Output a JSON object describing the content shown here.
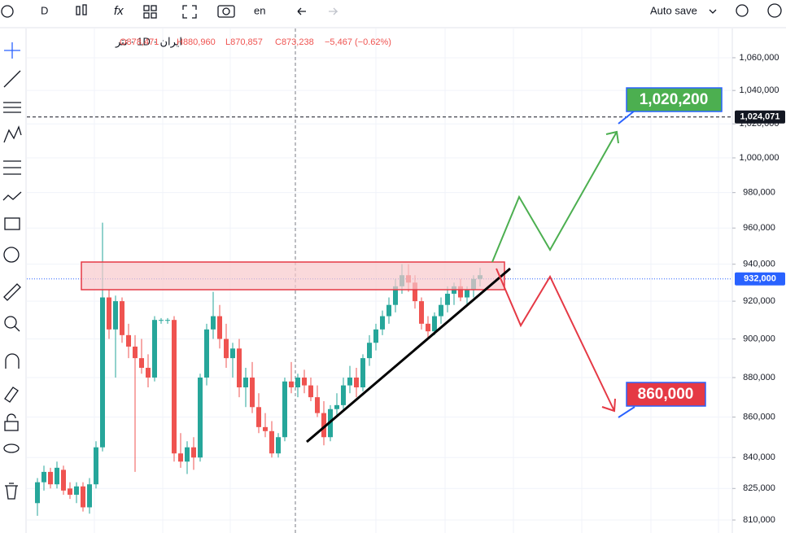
{
  "toolbar": {
    "interval": "D",
    "language": "en",
    "autosave": "Auto save"
  },
  "legend": {
    "symbol": "ایران · 1D · تتر",
    "open": "O878,471",
    "high": "H880,960",
    "low": "L870,857",
    "close": "C873,238",
    "change": "−5,467 (−0.62%)"
  },
  "chart_data": {
    "type": "candlestick",
    "log_scale": true,
    "grid": true,
    "up_color": "#26a69a",
    "down_color": "#ef5350",
    "open": [
      818000,
      828000,
      833000,
      827000,
      834000,
      825000,
      822000,
      826000,
      816000,
      827000,
      845000,
      922000,
      905000,
      920000,
      902000,
      896000,
      890000,
      885000,
      880000,
      910000,
      910000,
      910000,
      842000,
      838000,
      845000,
      840000,
      880000,
      905000,
      912000,
      900000,
      890000,
      895000,
      875000,
      880000,
      865000,
      855000,
      853000,
      842000,
      850000,
      878000,
      875000,
      880000,
      876000,
      870000,
      862000,
      850000,
      864000,
      866000,
      876000,
      880000,
      875000,
      890000,
      898000,
      905000,
      912000,
      918000,
      928000,
      934000,
      930000,
      920000,
      908000,
      904000,
      912000,
      918000,
      924000,
      928000,
      922000,
      926000,
      932000
    ],
    "high": [
      830000,
      836000,
      835000,
      838000,
      836000,
      828000,
      828000,
      828000,
      830000,
      848000,
      963000,
      926000,
      923000,
      922000,
      908000,
      902000,
      900000,
      892000,
      912000,
      911000,
      911000,
      912000,
      852000,
      848000,
      850000,
      882000,
      908000,
      925000,
      918000,
      908000,
      898000,
      900000,
      885000,
      888000,
      872000,
      862000,
      858000,
      852000,
      880000,
      888000,
      882000,
      884000,
      880000,
      876000,
      868000,
      866000,
      872000,
      880000,
      886000,
      885000,
      892000,
      902000,
      908000,
      915000,
      922000,
      932000,
      940000,
      940000,
      934000,
      922000,
      912000,
      914000,
      922000,
      928000,
      930000,
      932000,
      928000,
      934000,
      938000
    ],
    "low": [
      812000,
      824000,
      825000,
      825000,
      822000,
      820000,
      818000,
      814000,
      813000,
      825000,
      843000,
      900000,
      880000,
      898000,
      890000,
      833000,
      882000,
      875000,
      878000,
      908000,
      908000,
      838000,
      835000,
      832000,
      834000,
      838000,
      876000,
      900000,
      895000,
      885000,
      880000,
      870000,
      865000,
      862000,
      852000,
      850000,
      840000,
      840000,
      848000,
      872000,
      870000,
      872000,
      868000,
      860000,
      846000,
      848000,
      860000,
      864000,
      872000,
      870000,
      873000,
      886000,
      894000,
      902000,
      908000,
      914000,
      924000,
      925000,
      916000,
      905000,
      900000,
      902000,
      908000,
      914000,
      918000,
      920000,
      918000,
      922000,
      928000
    ],
    "close": [
      828000,
      833000,
      827000,
      835000,
      824000,
      822000,
      826000,
      816000,
      827000,
      845000,
      922000,
      905000,
      920000,
      902000,
      896000,
      890000,
      885000,
      880000,
      910000,
      910000,
      910000,
      842000,
      838000,
      845000,
      840000,
      880000,
      905000,
      912000,
      900000,
      890000,
      895000,
      875000,
      880000,
      865000,
      855000,
      853000,
      842000,
      850000,
      878000,
      875000,
      880000,
      876000,
      870000,
      862000,
      850000,
      864000,
      866000,
      876000,
      880000,
      875000,
      890000,
      898000,
      905000,
      912000,
      918000,
      928000,
      934000,
      930000,
      920000,
      908000,
      904000,
      912000,
      918000,
      924000,
      928000,
      922000,
      926000,
      932000,
      934000
    ],
    "ylim": [
      803900,
      1078200
    ],
    "yticks": [
      {
        "value": 1060000,
        "label": "1,060,000"
      },
      {
        "value": 1040000,
        "label": "1,040,000"
      },
      {
        "value": 1020000,
        "label": "1,020,000"
      },
      {
        "value": 1000000,
        "label": "1,000,000"
      },
      {
        "value": 980000,
        "label": "980,000"
      },
      {
        "value": 960000,
        "label": "960,000"
      },
      {
        "value": 940000,
        "label": "940,000"
      },
      {
        "value": 920000,
        "label": "920,000"
      },
      {
        "value": 900000,
        "label": "900,000"
      },
      {
        "value": 880000,
        "label": "880,000"
      },
      {
        "value": 860000,
        "label": "860,000"
      },
      {
        "value": 840000,
        "label": "840,000"
      },
      {
        "value": 825000,
        "label": "825,000"
      },
      {
        "value": 810000,
        "label": "810,000"
      }
    ],
    "price_lines": [
      {
        "value": 1024071,
        "label": "1,024,071",
        "color": "#131722"
      },
      {
        "value": 932000,
        "label": "932,000",
        "color": "#2962ff"
      }
    ],
    "annotations": [
      "1,020,200",
      "860,000"
    ]
  }
}
